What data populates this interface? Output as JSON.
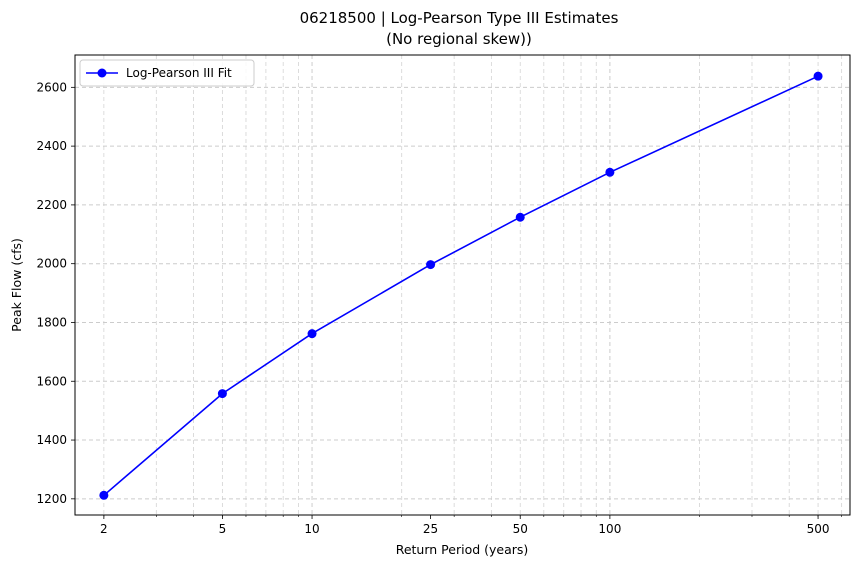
{
  "chart_data": {
    "type": "line",
    "title": "06218500 | Log-Pearson Type III Estimates",
    "subtitle": "(No regional skew))",
    "xlabel": "Return Period (years)",
    "ylabel": "Peak Flow (cfs)",
    "x_scale": "log",
    "xlim": [
      1.6,
      640
    ],
    "ylim": [
      1145,
      2710
    ],
    "x_ticks": [
      2,
      5,
      10,
      25,
      50,
      100,
      500
    ],
    "y_ticks": [
      1200,
      1400,
      1600,
      1800,
      2000,
      2200,
      2400,
      2600
    ],
    "grid": true,
    "legend_position": "top-left",
    "series": [
      {
        "name": "Log-Pearson III Fit",
        "color": "#0000ff",
        "marker": "circle",
        "x": [
          2,
          5,
          10,
          25,
          50,
          100,
          500
        ],
        "y": [
          1212,
          1558,
          1762,
          1997,
          2158,
          2311,
          2638
        ]
      }
    ]
  }
}
